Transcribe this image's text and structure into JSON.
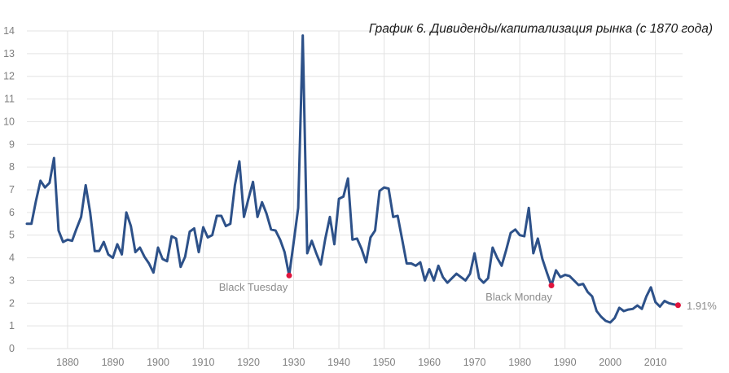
{
  "chart_data": {
    "type": "line",
    "title": "График 6. Дивиденды/капитализация рынка (с 1870 года)",
    "xlabel": "",
    "ylabel": "",
    "xlim": [
      1871,
      2016
    ],
    "ylim": [
      0,
      14
    ],
    "grid": true,
    "legend": "none",
    "x_ticks": [
      "1880",
      "1890",
      "1900",
      "1910",
      "1920",
      "1930",
      "1940",
      "1950",
      "1960",
      "1970",
      "1980",
      "1990",
      "2000",
      "2010"
    ],
    "y_ticks": [
      "0",
      "1",
      "2",
      "3",
      "4",
      "5",
      "6",
      "7",
      "8",
      "9",
      "10",
      "11",
      "12",
      "13",
      "14"
    ],
    "line_color": "#2d5189",
    "marker_color": "#e0143c",
    "series": [
      {
        "x": [
          1871,
          1872,
          1873,
          1874,
          1875,
          1876,
          1877,
          1878,
          1879,
          1880,
          1881,
          1882,
          1883,
          1884,
          1885,
          1886,
          1887,
          1888,
          1889,
          1890,
          1891,
          1892,
          1893,
          1894,
          1895,
          1896,
          1897,
          1898,
          1899,
          1900,
          1901,
          1902,
          1903,
          1904,
          1905,
          1906,
          1907,
          1908,
          1909,
          1910,
          1911,
          1912,
          1913,
          1914,
          1915,
          1916,
          1917,
          1918,
          1919,
          1920,
          1921,
          1922,
          1923,
          1924,
          1925,
          1926,
          1927,
          1928,
          1929,
          1930,
          1931,
          1932,
          1933,
          1934,
          1935,
          1936,
          1937,
          1938,
          1939,
          1940,
          1941,
          1942,
          1943,
          1944,
          1945,
          1946,
          1947,
          1948,
          1949,
          1950,
          1951,
          1952,
          1953,
          1954,
          1955,
          1956,
          1957,
          1958,
          1959,
          1960,
          1961,
          1962,
          1963,
          1964,
          1965,
          1966,
          1967,
          1968,
          1969,
          1970,
          1971,
          1972,
          1973,
          1974,
          1975,
          1976,
          1977,
          1978,
          1979,
          1980,
          1981,
          1982,
          1983,
          1984,
          1985,
          1986,
          1987,
          1988,
          1989,
          1990,
          1991,
          1992,
          1993,
          1994,
          1995,
          1996,
          1997,
          1998,
          1999,
          2000,
          2001,
          2002,
          2003,
          2004,
          2005,
          2006,
          2007,
          2008,
          2009,
          2010,
          2011,
          2012,
          2013,
          2014,
          2015
        ],
        "values": [
          5.5,
          5.5,
          6.5,
          7.4,
          7.1,
          7.3,
          8.4,
          5.2,
          4.7,
          4.8,
          4.75,
          5.3,
          5.8,
          7.2,
          6.0,
          4.3,
          4.3,
          4.7,
          4.15,
          4.0,
          4.6,
          4.15,
          6.0,
          5.4,
          4.25,
          4.45,
          4.05,
          3.75,
          3.35,
          4.45,
          3.95,
          3.85,
          4.95,
          4.85,
          3.6,
          4.05,
          5.15,
          5.3,
          4.25,
          5.35,
          4.9,
          5.0,
          5.85,
          5.85,
          5.4,
          5.5,
          7.2,
          8.25,
          5.8,
          6.6,
          7.35,
          5.8,
          6.45,
          5.95,
          5.25,
          5.2,
          4.8,
          4.25,
          3.22,
          4.7,
          6.2,
          13.8,
          4.2,
          4.75,
          4.2,
          3.7,
          4.85,
          5.8,
          4.6,
          6.6,
          6.7,
          7.5,
          4.8,
          4.85,
          4.4,
          3.8,
          4.9,
          5.2,
          6.95,
          7.1,
          7.05,
          5.8,
          5.85,
          4.8,
          3.75,
          3.75,
          3.65,
          3.8,
          3.0,
          3.5,
          3.0,
          3.65,
          3.15,
          2.9,
          3.1,
          3.3,
          3.15,
          3.0,
          3.3,
          4.2,
          3.1,
          2.9,
          3.1,
          4.45,
          4.0,
          3.65,
          4.35,
          5.1,
          5.25,
          5.0,
          4.95,
          6.2,
          4.2,
          4.85,
          3.95,
          3.35,
          2.78,
          3.45,
          3.15,
          3.25,
          3.2,
          3.0,
          2.8,
          2.85,
          2.5,
          2.3,
          1.65,
          1.4,
          1.22,
          1.15,
          1.35,
          1.8,
          1.65,
          1.72,
          1.75,
          1.9,
          1.75,
          2.3,
          2.7,
          2.05,
          1.85,
          2.1,
          2.0,
          1.95,
          1.91
        ]
      }
    ],
    "annotations": [
      {
        "label": "Black Tuesday",
        "x": 1929,
        "y": 3.22
      },
      {
        "label": "Black Monday",
        "x": 1987,
        "y": 2.78
      },
      {
        "label": "1.91%",
        "x": 2015,
        "y": 1.91
      }
    ]
  }
}
